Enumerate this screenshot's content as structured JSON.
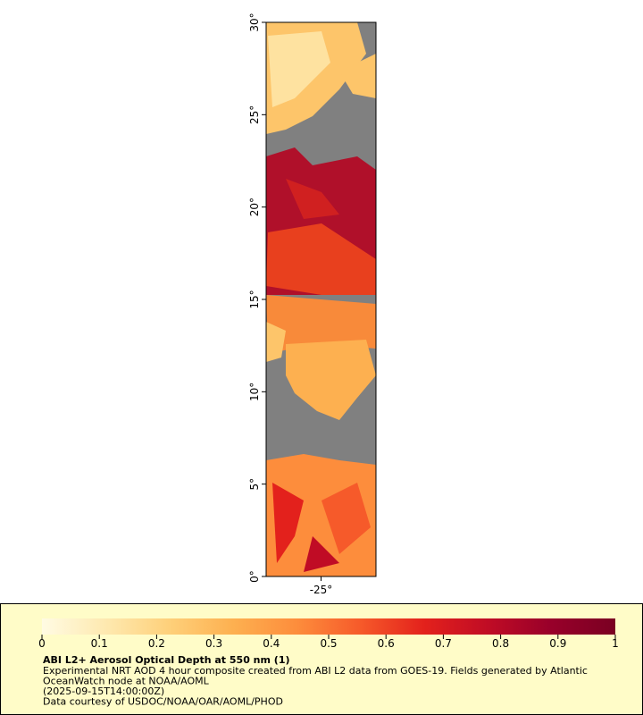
{
  "map": {
    "xlim": [
      -28,
      -22
    ],
    "ylim": [
      0,
      30
    ],
    "xticks": [
      {
        "value": -25,
        "label": "-25°"
      }
    ],
    "yticks": [
      {
        "value": 0,
        "label": "0°"
      },
      {
        "value": 5,
        "label": "5°"
      },
      {
        "value": 10,
        "label": "10°"
      },
      {
        "value": 15,
        "label": "15°"
      },
      {
        "value": 20,
        "label": "20°"
      },
      {
        "value": 25,
        "label": "25°"
      },
      {
        "value": 30,
        "label": "30°"
      }
    ]
  },
  "legend": {
    "title": "ABI L2+ Aerosol Optical Depth at 550 nm (1)",
    "lines": [
      "Experimental NRT AOD 4 hour composite created from ABI L2 data from GOES-19. Fields generated by Atlantic",
      "OceanWatch node at NOAA/AOML",
      "(2025-09-15T14:00:00Z)",
      "Data courtesy of USDOC/NOAA/OAR/AOML/PHOD"
    ],
    "colorbar": {
      "range": [
        0,
        1
      ],
      "ticks": [
        0,
        0.1,
        0.2,
        0.3,
        0.4,
        0.5,
        0.6,
        0.7,
        0.8,
        0.9,
        1
      ],
      "colormap": [
        "#fffbe3",
        "#fee9b0",
        "#fed07a",
        "#fdb050",
        "#fd8d3c",
        "#f65a2a",
        "#e3211c",
        "#c00c25",
        "#98002a",
        "#7a0022"
      ]
    }
  }
}
